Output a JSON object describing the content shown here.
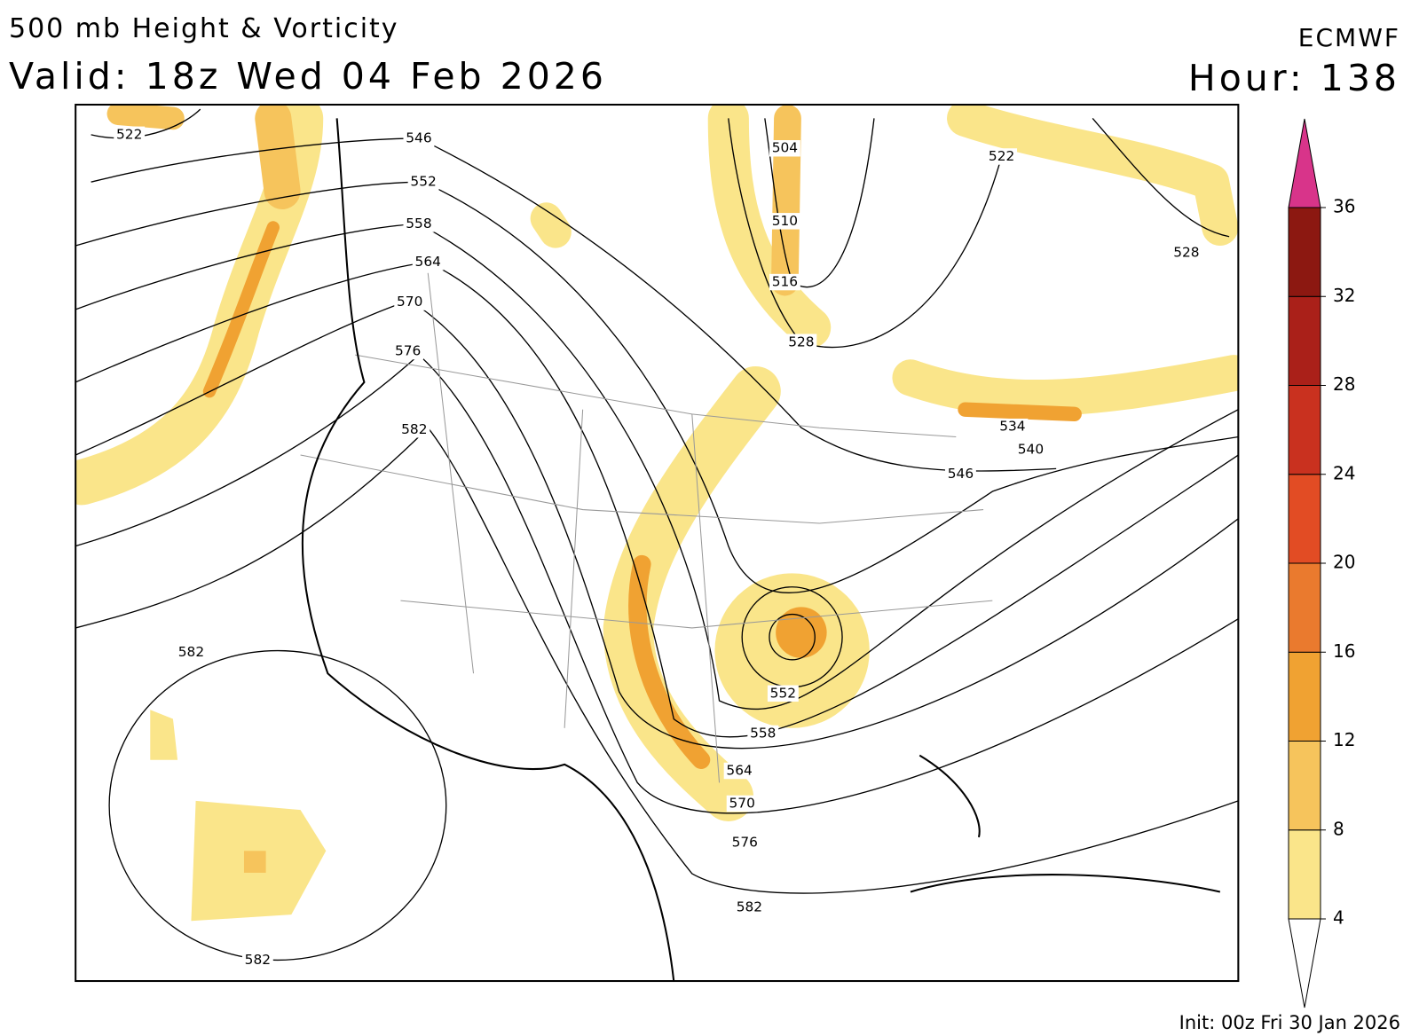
{
  "header": {
    "title": "500 mb Height & Vorticity",
    "valid": "Valid: 18z Wed 04 Feb 2026",
    "model": "ECMWF",
    "hour": "Hour: 138"
  },
  "contour_labels": [
    "522",
    "546",
    "552",
    "558",
    "564",
    "570",
    "576",
    "582",
    "504",
    "510",
    "516",
    "528",
    "522",
    "528",
    "534",
    "540",
    "546",
    "582",
    "582",
    "552",
    "558",
    "564",
    "570",
    "576",
    "582"
  ],
  "colorbar": {
    "range": [
      4,
      36
    ],
    "ticks": [
      4,
      8,
      12,
      16,
      20,
      24,
      28,
      32,
      36
    ],
    "colors": [
      "#fae58a",
      "#f6c45c",
      "#f0a232",
      "#ea7a2e",
      "#e24c24",
      "#c9311f",
      "#aa2019",
      "#8c1811"
    ],
    "over_color": "#d8348a",
    "under_color": "#ffffff"
  },
  "footer": {
    "init": "Init: 00z Fri 30 Jan 2026"
  }
}
